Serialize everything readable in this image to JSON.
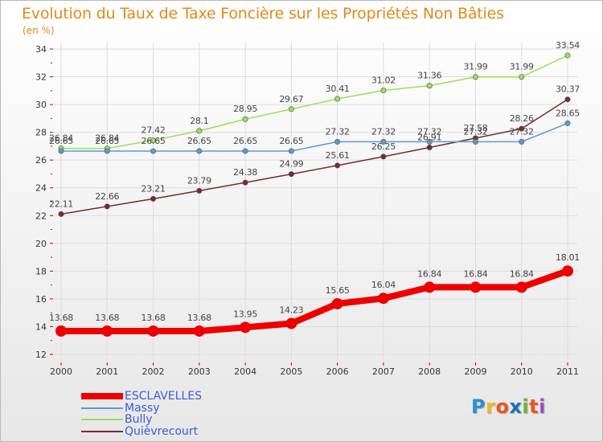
{
  "title": "Evolution du Taux de Taxe Foncière sur les Propriétés Non Bâties",
  "unit_label": "(en %)",
  "logo": {
    "letters": [
      "P",
      "r",
      "o",
      "x",
      "i",
      "t",
      "i"
    ],
    "colors": [
      "#2a8fd6",
      "#f0b81a",
      "#e8561c",
      "#1d6fbf",
      "#6bb52c",
      "#e8561c",
      "#9b4fc0"
    ]
  },
  "chart_data": {
    "type": "line",
    "x": [
      "2000",
      "2001",
      "2002",
      "2003",
      "2004",
      "2005",
      "2006",
      "2007",
      "2008",
      "2009",
      "2010",
      "2011"
    ],
    "ylim": [
      12,
      34
    ],
    "yticks": [
      "12",
      "14",
      "16",
      "18",
      "20",
      "22",
      "24",
      "26",
      "28",
      "30",
      "32",
      "34"
    ],
    "grid": true,
    "legend_position": "bottom-left",
    "series": [
      {
        "name": "ESCLAVELLES",
        "color": "#ee0000",
        "values": [
          13.68,
          13.68,
          13.68,
          13.68,
          13.95,
          14.23,
          15.65,
          16.04,
          16.84,
          16.84,
          16.84,
          18.01
        ],
        "labels": [
          "13.68",
          "13.68",
          "13.68",
          "13.68",
          "13.95",
          "14.23",
          "15.65",
          "16.04",
          "16.84",
          "16.84",
          "16.84",
          "18.01"
        ]
      },
      {
        "name": "Massy",
        "color": "#5b9ad5",
        "values": [
          26.65,
          26.65,
          26.65,
          26.65,
          26.65,
          26.65,
          27.32,
          27.32,
          27.32,
          27.32,
          27.32,
          28.65
        ],
        "labels": [
          "26.65",
          "26.65",
          "26.65",
          "26.65",
          "26.65",
          "26.65",
          "27.32",
          "27.32",
          "27.32",
          "27.32",
          "27.32",
          "28.65"
        ]
      },
      {
        "name": "Bully",
        "color": "#9be05a",
        "values": [
          26.84,
          26.84,
          27.42,
          28.1,
          28.95,
          29.67,
          30.41,
          31.02,
          31.36,
          31.99,
          31.99,
          33.54
        ],
        "labels": [
          "26.84",
          "26.84",
          "27.42",
          "28.1",
          "28.95",
          "29.67",
          "30.41",
          "31.02",
          "31.36",
          "31.99",
          "31.99",
          "33.54"
        ]
      },
      {
        "name": "Quièvrecourt",
        "color": "#7a2a2a",
        "values": [
          22.11,
          22.66,
          23.21,
          23.79,
          24.38,
          24.99,
          25.61,
          26.25,
          26.91,
          27.58,
          28.26,
          30.37
        ],
        "labels": [
          "22.11",
          "22.66",
          "23.21",
          "23.79",
          "24.38",
          "24.99",
          "25.61",
          "26.25",
          "26.91",
          "27.58",
          "28.26",
          "30.37"
        ]
      }
    ]
  }
}
